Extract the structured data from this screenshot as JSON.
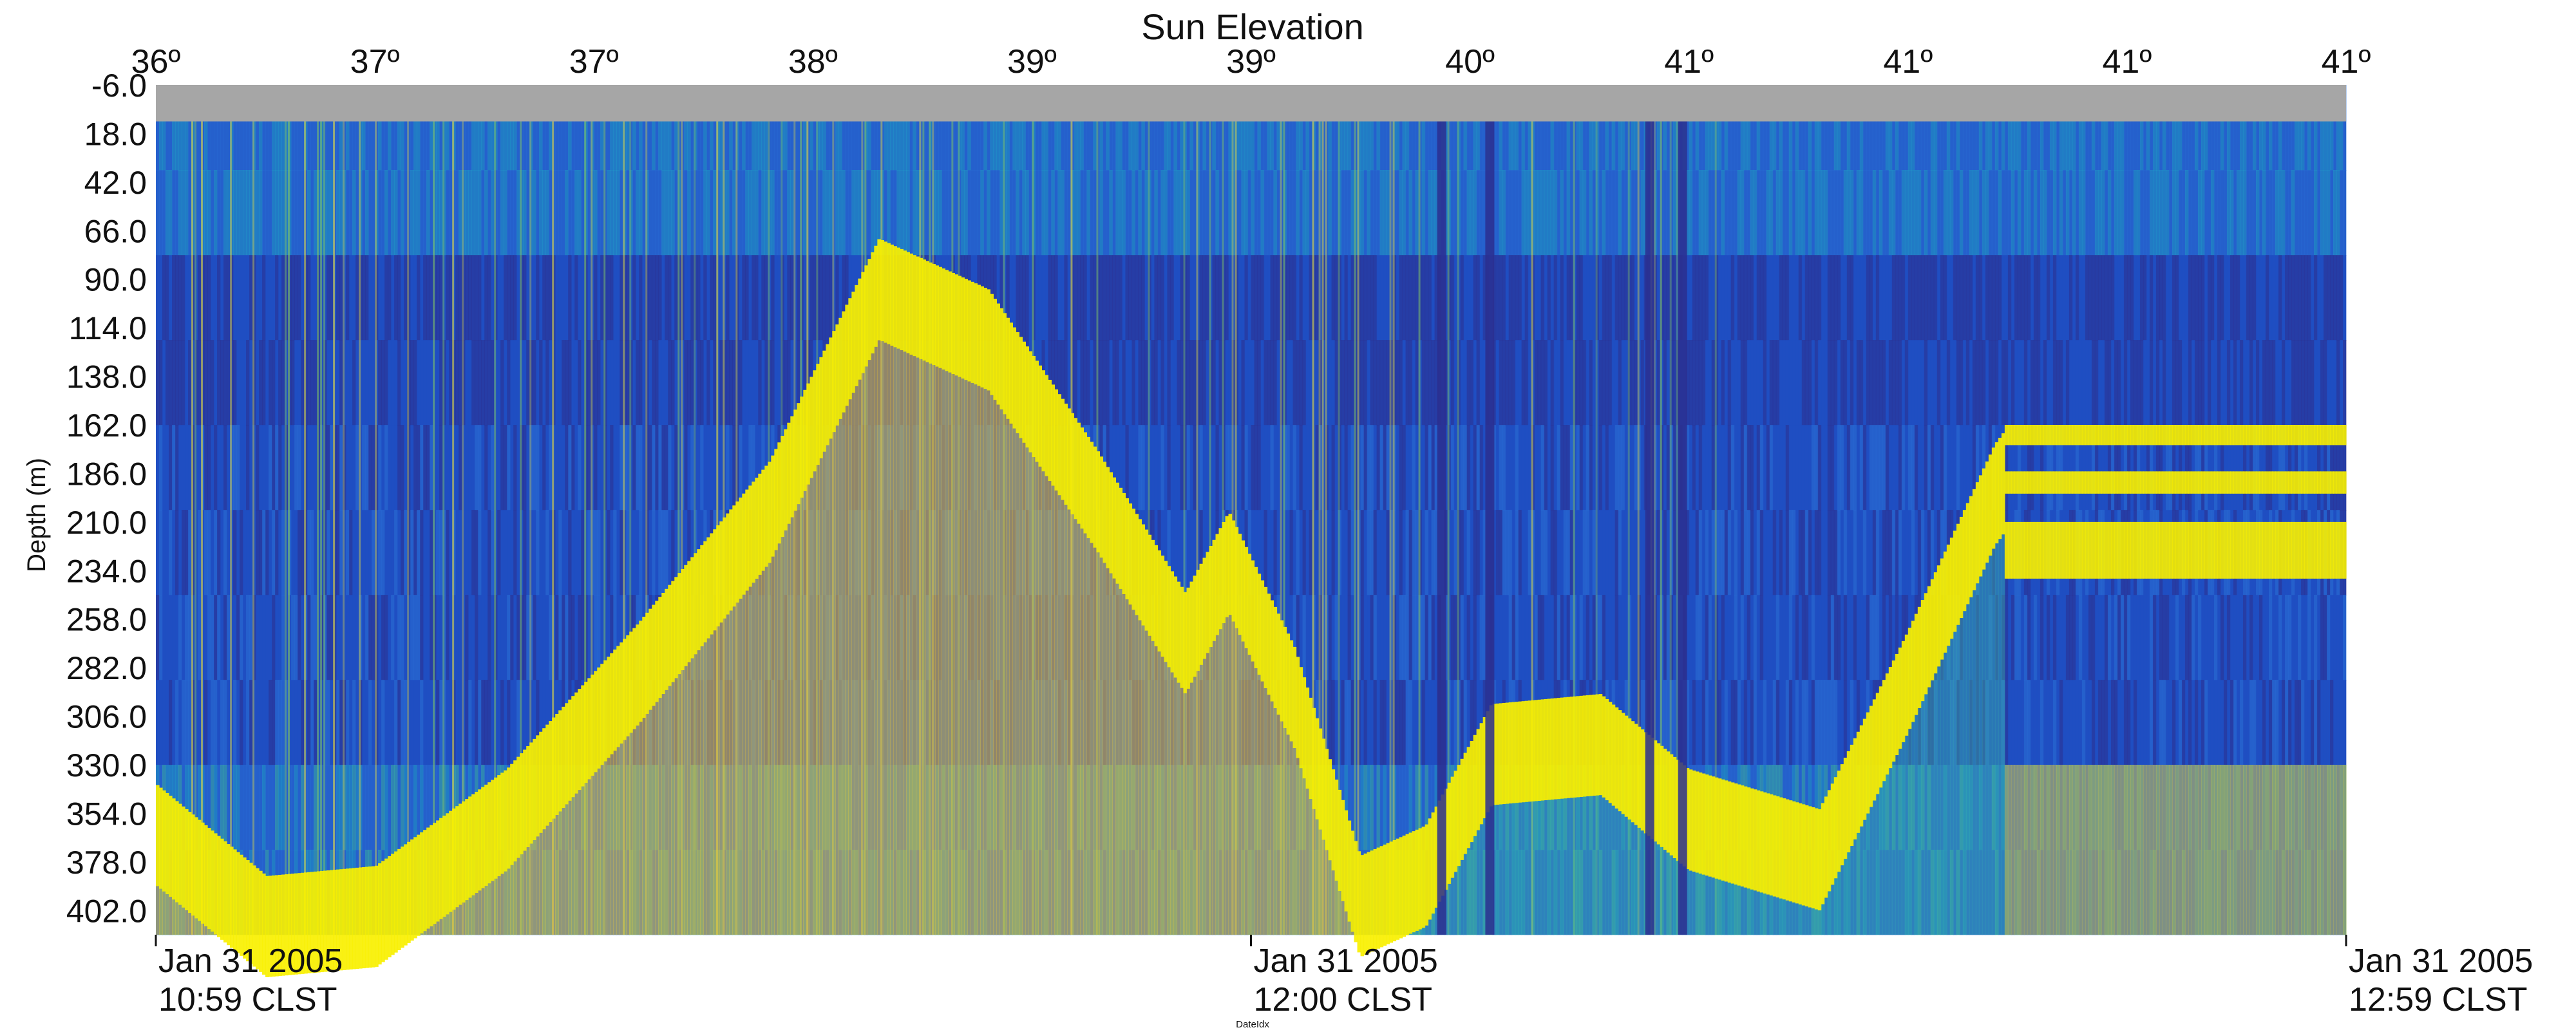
{
  "chart_data": {
    "type": "heatmap",
    "title": "Sun Elevation",
    "ylabel": "Depth (m)",
    "xlabel": "DateIdx",
    "top_tick_labels": [
      "36º",
      "37º",
      "37º",
      "38º",
      "39º",
      "39º",
      "40º",
      "41º",
      "41º",
      "41º",
      "41º"
    ],
    "y_tick_labels": [
      "-6.0",
      "18.0",
      "42.0",
      "66.0",
      "90.0",
      "114.0",
      "138.0",
      "162.0",
      "186.0",
      "210.0",
      "234.0",
      "258.0",
      "282.0",
      "306.0",
      "330.0",
      "354.0",
      "378.0",
      "402.0"
    ],
    "y_range_m": [
      -6,
      414
    ],
    "x_tick_labels": [
      {
        "date": "Jan 31 2005",
        "time": "10:59 CLST"
      },
      {
        "date": "Jan 31 2005",
        "time": "12:00 CLST"
      },
      {
        "date": "Jan 31 2005",
        "time": "12:59 CLST"
      }
    ],
    "no_data_depth_range_m": [
      -6,
      12
    ],
    "background_colors": [
      "#2b2f8f",
      "#1f4fc2",
      "#2a6fd6",
      "#22a0c8",
      "#3cb7a6",
      "#7cc06a"
    ],
    "scatter_layer": {
      "name": "fish-layer",
      "color": "#f8f000",
      "depth_profile_m": [
        {
          "t": 0.0,
          "depth": 360
        },
        {
          "t": 0.05,
          "depth": 405
        },
        {
          "t": 0.1,
          "depth": 400
        },
        {
          "t": 0.16,
          "depth": 352
        },
        {
          "t": 0.22,
          "depth": 280
        },
        {
          "t": 0.28,
          "depth": 200
        },
        {
          "t": 0.33,
          "depth": 90
        },
        {
          "t": 0.38,
          "depth": 115
        },
        {
          "t": 0.43,
          "depth": 195
        },
        {
          "t": 0.47,
          "depth": 265
        },
        {
          "t": 0.49,
          "depth": 225
        },
        {
          "t": 0.52,
          "depth": 292
        },
        {
          "t": 0.55,
          "depth": 395
        },
        {
          "t": 0.58,
          "depth": 380
        },
        {
          "t": 0.61,
          "depth": 320
        },
        {
          "t": 0.66,
          "depth": 315
        },
        {
          "t": 0.7,
          "depth": 352
        },
        {
          "t": 0.76,
          "depth": 372
        },
        {
          "t": 0.8,
          "depth": 285
        },
        {
          "t": 0.84,
          "depth": 192
        },
        {
          "t": 0.86,
          "depth": 162
        },
        {
          "t": 1.0,
          "depth": 162
        }
      ],
      "late_bands_m": [
        [
          162,
          172
        ],
        [
          185,
          196
        ],
        [
          210,
          238
        ]
      ]
    }
  }
}
